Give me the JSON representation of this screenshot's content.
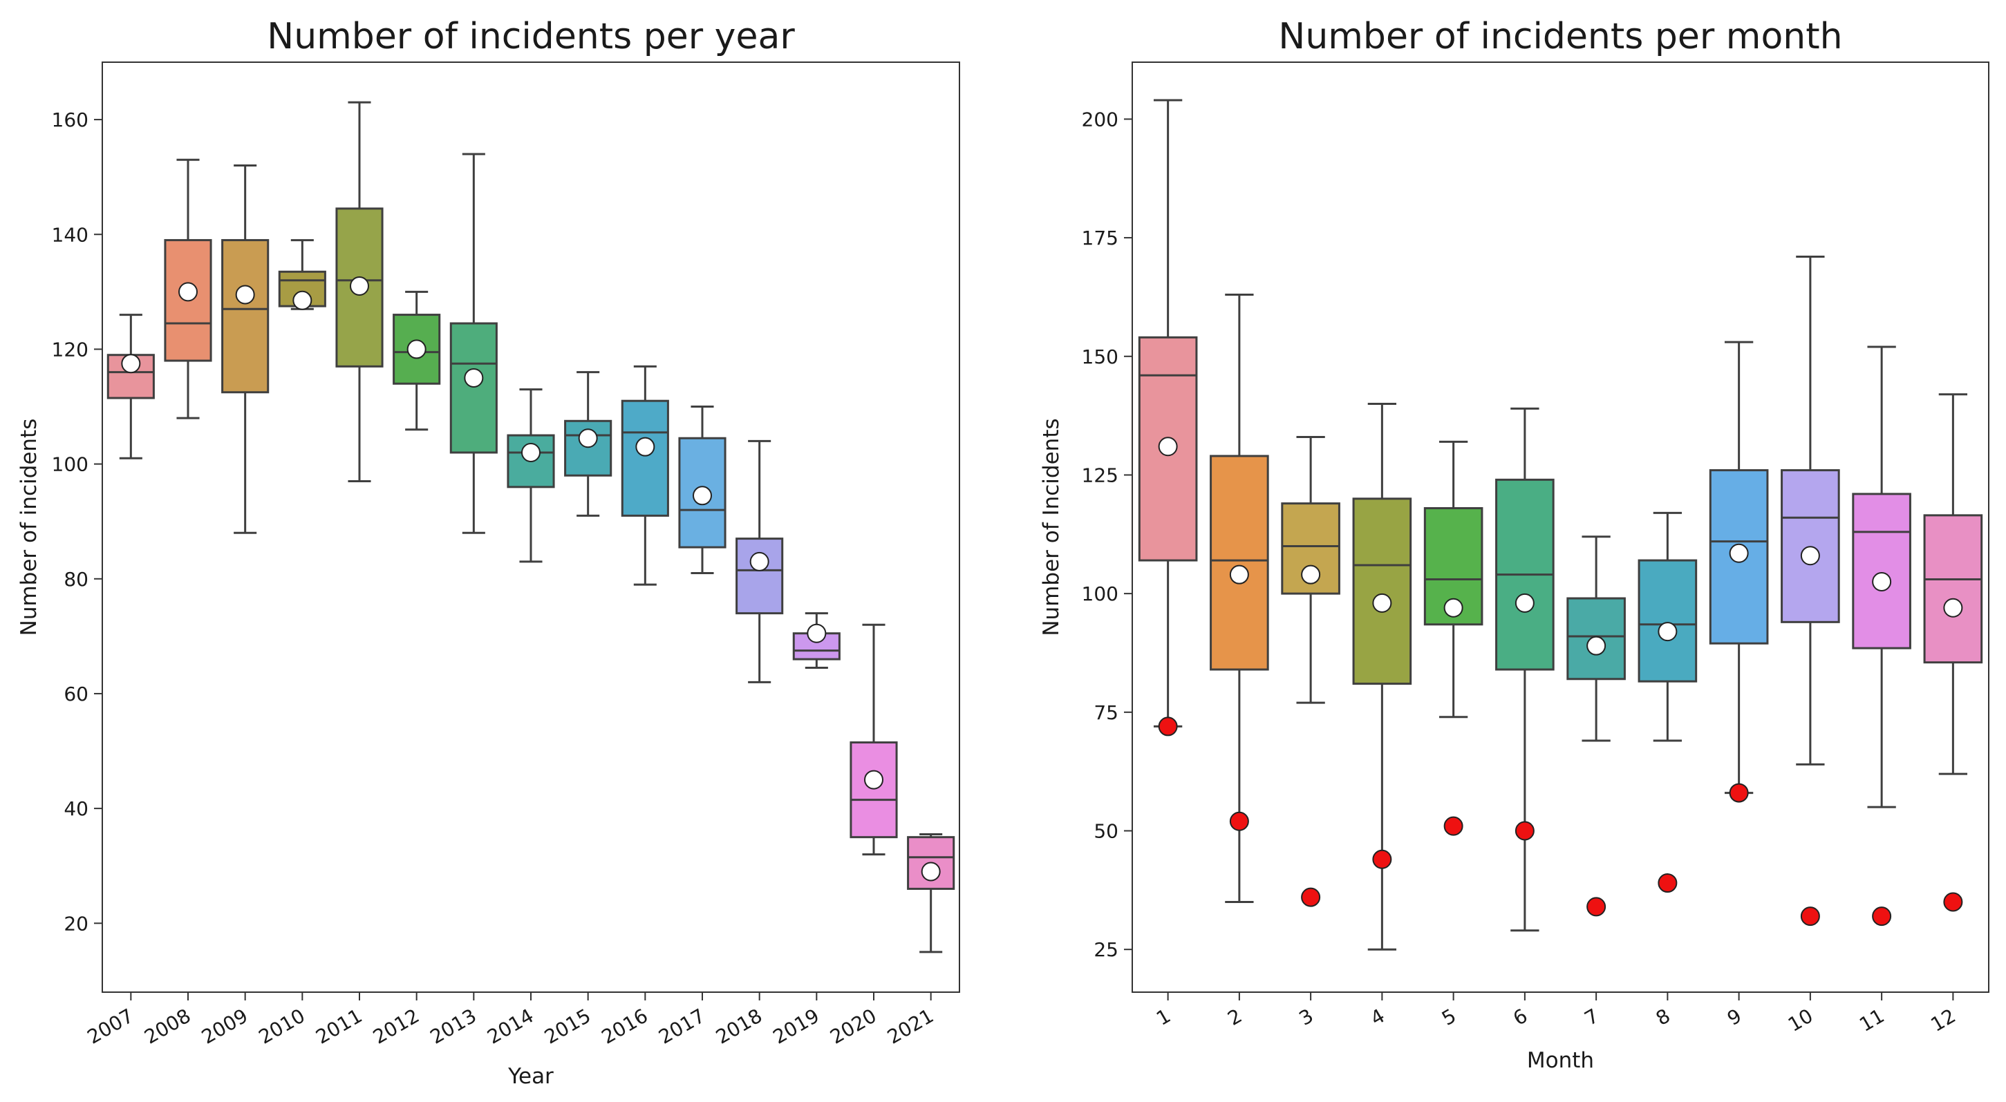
{
  "chart_data": [
    {
      "type": "box",
      "title": "Number of incidents per year",
      "xlabel": "Year",
      "ylabel": "Number of incidents",
      "ylim": [
        8,
        170
      ],
      "yticks": [
        20,
        40,
        60,
        80,
        100,
        120,
        140,
        160
      ],
      "xtick_rotation": "rotated",
      "mean_marker": "white circle",
      "categories": [
        "2007",
        "2008",
        "2009",
        "2010",
        "2011",
        "2012",
        "2013",
        "2014",
        "2015",
        "2016",
        "2017",
        "2018",
        "2019",
        "2020",
        "2021"
      ],
      "colors": [
        "#e8949c",
        "#e89070",
        "#c99c52",
        "#a89c44",
        "#96a44a",
        "#56ae50",
        "#4ead7c",
        "#4aac9e",
        "#4aaab4",
        "#4eaac8",
        "#6ab0e2",
        "#a8a4ea",
        "#cc98ee",
        "#ea8ee2",
        "#ea8ec8"
      ],
      "boxes": [
        {
          "whislo": 101,
          "q1": 111.5,
          "med": 116,
          "q3": 119,
          "whishi": 126,
          "mean": 117.5,
          "fliers": []
        },
        {
          "whislo": 108,
          "q1": 118,
          "med": 124.5,
          "q3": 139,
          "whishi": 153,
          "mean": 130,
          "fliers": []
        },
        {
          "whislo": 88,
          "q1": 112.5,
          "med": 127,
          "q3": 139,
          "whishi": 152,
          "mean": 129.5,
          "fliers": []
        },
        {
          "whislo": 127,
          "q1": 127.5,
          "med": 132,
          "q3": 133.5,
          "whishi": 139,
          "mean": 128.5,
          "fliers": []
        },
        {
          "whislo": 97,
          "q1": 117,
          "med": 132,
          "q3": 144.5,
          "whishi": 163,
          "mean": 131,
          "fliers": []
        },
        {
          "whislo": 106,
          "q1": 114,
          "med": 119.5,
          "q3": 126,
          "whishi": 130,
          "mean": 120,
          "fliers": []
        },
        {
          "whislo": 88,
          "q1": 102,
          "med": 117.5,
          "q3": 124.5,
          "whishi": 154,
          "mean": 115,
          "fliers": []
        },
        {
          "whislo": 83,
          "q1": 96,
          "med": 102,
          "q3": 105,
          "whishi": 113,
          "mean": 102,
          "fliers": []
        },
        {
          "whislo": 91,
          "q1": 98,
          "med": 105,
          "q3": 107.5,
          "whishi": 116,
          "mean": 104.5,
          "fliers": []
        },
        {
          "whislo": 79,
          "q1": 91,
          "med": 105.5,
          "q3": 111,
          "whishi": 117,
          "mean": 103,
          "fliers": []
        },
        {
          "whislo": 81,
          "q1": 85.5,
          "med": 92,
          "q3": 104.5,
          "whishi": 110,
          "mean": 94.5,
          "fliers": []
        },
        {
          "whislo": 62,
          "q1": 74,
          "med": 81.5,
          "q3": 87,
          "whishi": 104,
          "mean": 83,
          "fliers": []
        },
        {
          "whislo": 64.5,
          "q1": 66,
          "med": 67.5,
          "q3": 70.5,
          "whishi": 74,
          "mean": 70.5,
          "fliers": []
        },
        {
          "whislo": 32,
          "q1": 35,
          "med": 41.5,
          "q3": 51.5,
          "whishi": 72,
          "mean": 45,
          "fliers": []
        },
        {
          "whislo": 15,
          "q1": 26,
          "med": 31.5,
          "q3": 35,
          "whishi": 35.5,
          "mean": 29,
          "fliers": []
        }
      ]
    },
    {
      "type": "box",
      "title": "Number of incidents per month",
      "xlabel": "Month",
      "ylabel": "Number of Incidents",
      "ylim": [
        16,
        212
      ],
      "yticks": [
        25,
        50,
        75,
        100,
        125,
        150,
        175,
        200
      ],
      "xtick_rotation": "rotated",
      "mean_marker": "white circle",
      "outlier_marker": "red circle",
      "categories": [
        "1",
        "2",
        "3",
        "4",
        "5",
        "6",
        "7",
        "8",
        "9",
        "10",
        "11",
        "12"
      ],
      "colors": [
        "#e8949c",
        "#e6944a",
        "#c4a650",
        "#98a444",
        "#56b24c",
        "#4aae84",
        "#4aaaa6",
        "#4aaac0",
        "#66aee6",
        "#b4a6ee",
        "#e28ee6",
        "#e890c4"
      ],
      "boxes": [
        {
          "whislo": 72,
          "q1": 107,
          "med": 146,
          "q3": 154,
          "whishi": 204,
          "mean": 131,
          "fliers": [
            72
          ]
        },
        {
          "whislo": 35,
          "q1": 84,
          "med": 107,
          "q3": 129,
          "whishi": 163,
          "mean": 104,
          "fliers": [
            52
          ]
        },
        {
          "whislo": 77,
          "q1": 100,
          "med": 110,
          "q3": 119,
          "whishi": 133,
          "mean": 104,
          "fliers": [
            36
          ]
        },
        {
          "whislo": 25,
          "q1": 81,
          "med": 106,
          "q3": 120,
          "whishi": 140,
          "mean": 98,
          "fliers": [
            44
          ]
        },
        {
          "whislo": 74,
          "q1": 93.5,
          "med": 103,
          "q3": 118,
          "whishi": 132,
          "mean": 97,
          "fliers": [
            51
          ]
        },
        {
          "whislo": 29,
          "q1": 84,
          "med": 104,
          "q3": 124,
          "whishi": 139,
          "mean": 98,
          "fliers": [
            50
          ]
        },
        {
          "whislo": 69,
          "q1": 82,
          "med": 91,
          "q3": 99,
          "whishi": 112,
          "mean": 89,
          "fliers": [
            34
          ]
        },
        {
          "whislo": 69,
          "q1": 81.5,
          "med": 93.5,
          "q3": 107,
          "whishi": 117,
          "mean": 92,
          "fliers": [
            39
          ]
        },
        {
          "whislo": 58,
          "q1": 89.5,
          "med": 111,
          "q3": 126,
          "whishi": 153,
          "mean": 108.5,
          "fliers": [
            58
          ]
        },
        {
          "whislo": 64,
          "q1": 94,
          "med": 116,
          "q3": 126,
          "whishi": 171,
          "mean": 108,
          "fliers": [
            32
          ]
        },
        {
          "whislo": 55,
          "q1": 88.5,
          "med": 113,
          "q3": 121,
          "whishi": 152,
          "mean": 102.5,
          "fliers": [
            32
          ]
        },
        {
          "whislo": 62,
          "q1": 85.5,
          "med": 103,
          "q3": 116.5,
          "whishi": 142,
          "mean": 97,
          "fliers": [
            35
          ]
        }
      ]
    }
  ]
}
